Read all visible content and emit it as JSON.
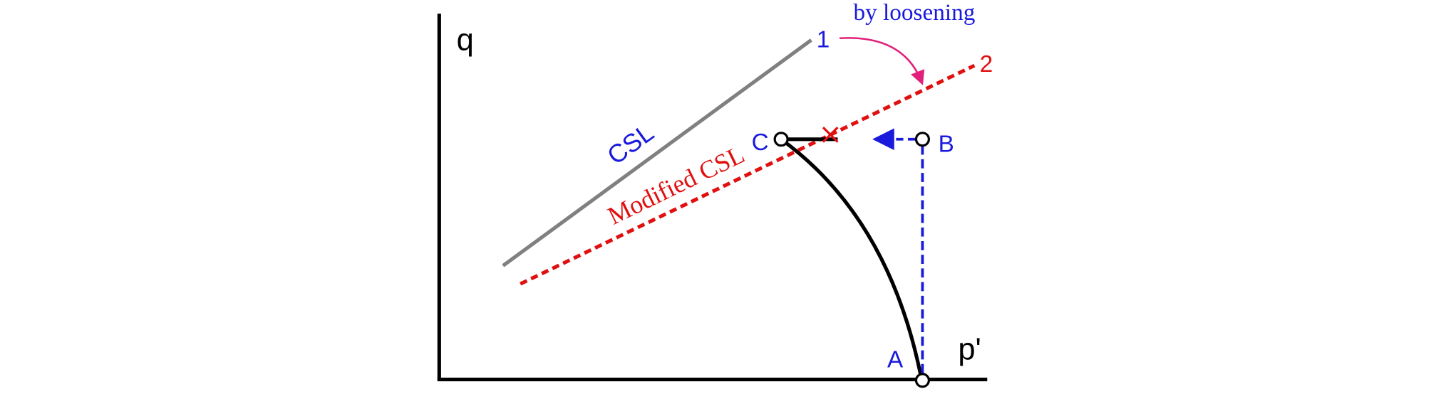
{
  "axes": {
    "y_label": "q",
    "x_label": "p'"
  },
  "lines": {
    "csl": "CSL",
    "modified_csl": "Modified CSL",
    "line_1": "1",
    "line_2": "2"
  },
  "annotation": "by loosening",
  "points": {
    "a": "A",
    "b": "B",
    "c": "C"
  }
}
